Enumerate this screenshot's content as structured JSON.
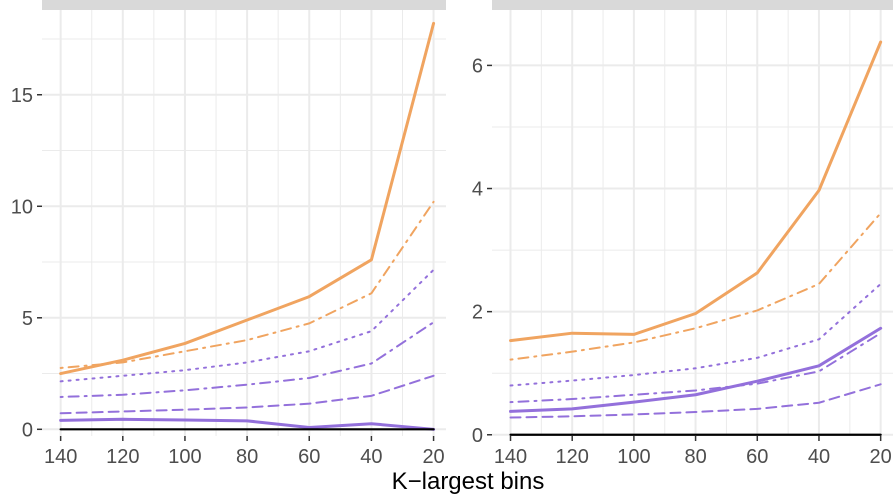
{
  "x_axis_title": "K−largest bins",
  "colors": {
    "orange": "#f0a460",
    "purple": "#9370db",
    "grid": "#ebebeb",
    "strip": "#d9d9d9",
    "baseline": "#000000"
  },
  "chart_data": [
    {
      "type": "line",
      "panel": "left",
      "x": [
        140,
        120,
        100,
        80,
        60,
        40,
        20
      ],
      "x_reversed": true,
      "xlim": [
        146,
        16
      ],
      "ylim": [
        -0.3,
        18.8
      ],
      "x_ticks": [
        140,
        120,
        100,
        80,
        60,
        40,
        20
      ],
      "y_ticks": [
        0,
        5,
        10,
        15
      ],
      "grid": true,
      "series": [
        {
          "color": "orange",
          "dash": "solid",
          "values": [
            2.5,
            3.1,
            3.85,
            4.9,
            5.95,
            7.6,
            18.2
          ]
        },
        {
          "color": "orange",
          "dash": "dashdot",
          "values": [
            2.75,
            3.0,
            3.5,
            4.0,
            4.75,
            6.1,
            10.2
          ]
        },
        {
          "color": "purple",
          "dash": "dotted",
          "values": [
            2.15,
            2.4,
            2.65,
            3.0,
            3.5,
            4.4,
            7.15
          ]
        },
        {
          "color": "purple",
          "dash": "dashdot",
          "values": [
            1.45,
            1.55,
            1.75,
            2.0,
            2.3,
            2.95,
            4.8
          ]
        },
        {
          "color": "purple",
          "dash": "dashed",
          "values": [
            0.72,
            0.8,
            0.88,
            0.98,
            1.15,
            1.5,
            2.4
          ]
        },
        {
          "color": "purple",
          "dash": "solid",
          "values": [
            0.4,
            0.45,
            0.42,
            0.38,
            0.08,
            0.25,
            0.0
          ]
        },
        {
          "color": "baseline",
          "dash": "solid",
          "values": [
            0,
            0,
            0,
            0,
            0,
            0,
            0
          ]
        }
      ]
    },
    {
      "type": "line",
      "panel": "right",
      "x": [
        140,
        120,
        100,
        80,
        60,
        40,
        20
      ],
      "x_reversed": true,
      "xlim": [
        146,
        16
      ],
      "ylim": [
        -0.02,
        6.9
      ],
      "x_ticks": [
        140,
        120,
        100,
        80,
        60,
        40,
        20
      ],
      "y_ticks": [
        0,
        2,
        4,
        6
      ],
      "grid": true,
      "series": [
        {
          "color": "orange",
          "dash": "solid",
          "values": [
            1.53,
            1.65,
            1.63,
            1.97,
            2.63,
            3.97,
            6.38
          ]
        },
        {
          "color": "orange",
          "dash": "dashdot",
          "values": [
            1.22,
            1.35,
            1.5,
            1.73,
            2.02,
            2.45,
            3.6
          ]
        },
        {
          "color": "purple",
          "dash": "dotted",
          "values": [
            0.8,
            0.88,
            0.97,
            1.08,
            1.25,
            1.55,
            2.45
          ]
        },
        {
          "color": "purple",
          "dash": "dashdot",
          "values": [
            0.53,
            0.58,
            0.65,
            0.72,
            0.83,
            1.03,
            1.65
          ]
        },
        {
          "color": "purple",
          "dash": "dashed",
          "values": [
            0.28,
            0.3,
            0.33,
            0.37,
            0.42,
            0.52,
            0.82
          ]
        },
        {
          "color": "purple",
          "dash": "solid",
          "values": [
            0.38,
            0.42,
            0.53,
            0.65,
            0.87,
            1.12,
            1.73
          ]
        },
        {
          "color": "baseline",
          "dash": "solid",
          "values": [
            0,
            0,
            0,
            0,
            0,
            0,
            0
          ]
        }
      ]
    }
  ]
}
